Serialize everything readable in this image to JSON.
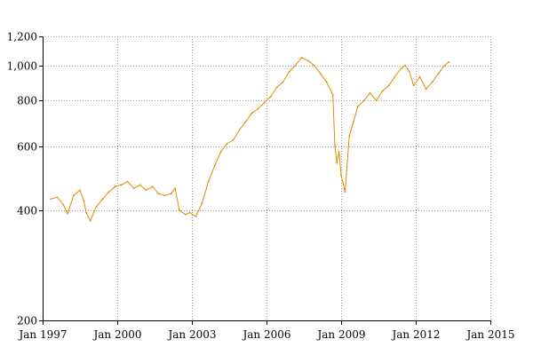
{
  "chart_data": {
    "type": "line",
    "title": "",
    "xlabel": "",
    "ylabel": "",
    "x_scale": "time",
    "y_scale": "log",
    "xlim": [
      "1997-01-01",
      "2015-01-01"
    ],
    "ylim": [
      200,
      1200
    ],
    "grid": true,
    "legend": "none",
    "x_ticks": [
      {
        "value": "1997-01-01",
        "label": "Jan 1997"
      },
      {
        "value": "2000-01-01",
        "label": "Jan 2000"
      },
      {
        "value": "2003-01-01",
        "label": "Jan 2003"
      },
      {
        "value": "2006-01-01",
        "label": "Jan 2006"
      },
      {
        "value": "2009-01-01",
        "label": "Jan 2009"
      },
      {
        "value": "2012-01-01",
        "label": "Jan 2012"
      },
      {
        "value": "2015-01-01",
        "label": "Jan 2015"
      }
    ],
    "y_ticks": [
      {
        "value": 200,
        "label": "200"
      },
      {
        "value": 400,
        "label": "400"
      },
      {
        "value": 600,
        "label": "600"
      },
      {
        "value": 800,
        "label": "800"
      },
      {
        "value": 1000,
        "label": "1,000"
      },
      {
        "value": 1200,
        "label": "1,200"
      }
    ],
    "series": [
      {
        "color": "#e08a00",
        "x": [
          "1997-05-01",
          "1997-08-01",
          "1997-11-01",
          "1998-01-01",
          "1998-04-01",
          "1998-07-01",
          "1998-09-01",
          "1998-10-01",
          "1998-12-01",
          "1999-03-01",
          "1999-06-01",
          "1999-09-01",
          "1999-12-01",
          "2000-03-01",
          "2000-06-01",
          "2000-09-01",
          "2000-12-01",
          "2001-03-01",
          "2001-06-01",
          "2001-09-01",
          "2001-12-01",
          "2002-03-01",
          "2002-05-01",
          "2002-07-01",
          "2002-10-01",
          "2002-12-01",
          "2003-03-01",
          "2003-06-01",
          "2003-09-01",
          "2003-12-01",
          "2004-03-01",
          "2004-06-01",
          "2004-09-01",
          "2004-12-01",
          "2005-03-01",
          "2005-06-01",
          "2005-09-01",
          "2005-12-01",
          "2006-03-01",
          "2006-06-01",
          "2006-09-01",
          "2006-12-01",
          "2007-03-01",
          "2007-06-01",
          "2007-09-01",
          "2007-12-01",
          "2008-03-01",
          "2008-06-01",
          "2008-09-01",
          "2008-10-01",
          "2008-11-01",
          "2008-12-01",
          "2009-01-01",
          "2009-03-01",
          "2009-05-01",
          "2009-07-01",
          "2009-09-01",
          "2009-12-01",
          "2010-03-01",
          "2010-06-01",
          "2010-09-01",
          "2010-12-01",
          "2011-03-01",
          "2011-06-01",
          "2011-08-01",
          "2011-10-01",
          "2011-12-01",
          "2012-03-01",
          "2012-06-01",
          "2012-09-01",
          "2012-12-01",
          "2013-03-01",
          "2013-05-01"
        ],
        "values": [
          430,
          435,
          415,
          392,
          440,
          455,
          425,
          395,
          375,
          410,
          430,
          450,
          465,
          470,
          480,
          460,
          470,
          455,
          465,
          445,
          440,
          445,
          460,
          400,
          390,
          395,
          385,
          420,
          480,
          530,
          580,
          610,
          625,
          665,
          700,
          740,
          760,
          790,
          820,
          870,
          900,
          960,
          1000,
          1050,
          1030,
          1000,
          950,
          900,
          830,
          600,
          540,
          580,
          500,
          450,
          640,
          700,
          770,
          800,
          840,
          800,
          850,
          880,
          930,
          980,
          1000,
          960,
          880,
          930,
          860,
          900,
          950,
          1000,
          1020
        ]
      }
    ]
  }
}
